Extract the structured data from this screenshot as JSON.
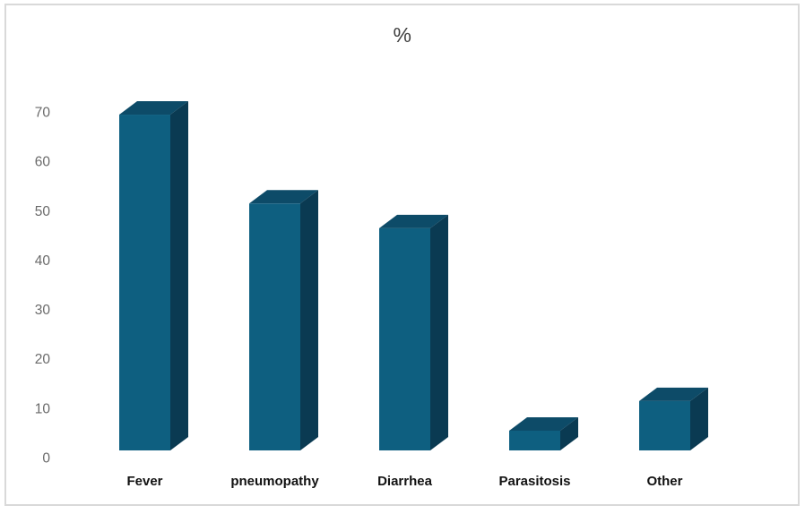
{
  "frame": {
    "border_color": "#d9d9d9",
    "background_color": "#ffffff"
  },
  "chart_data": {
    "type": "bar",
    "style": "3d-column",
    "title": "%",
    "title_color": "#404040",
    "categories": [
      "Fever",
      "pneumopathy",
      "Diarrhea",
      "Parasitosis",
      "Other"
    ],
    "values": [
      68,
      50,
      45,
      4,
      10
    ],
    "xlabel": "",
    "ylabel": "",
    "ylim": [
      0,
      70
    ],
    "yticks": [
      0,
      10,
      20,
      30,
      40,
      50,
      60,
      70
    ],
    "grid": false,
    "legend": false,
    "bar_colors": {
      "front": "#0e5f80",
      "top": "#0d4b68",
      "side": "#0a3a52"
    },
    "ytick_label_color": "#6a6a6a",
    "category_label_color": "#111111"
  }
}
